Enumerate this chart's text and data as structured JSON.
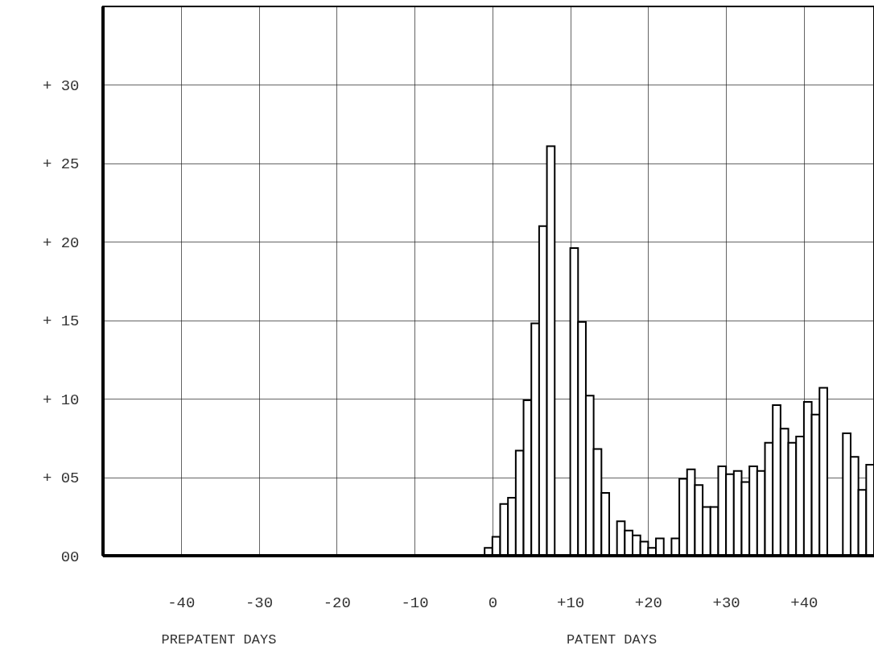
{
  "chart_data": {
    "type": "histogram",
    "bins": [
      -1,
      0,
      1,
      2,
      3,
      4,
      5,
      6,
      7,
      8,
      9,
      10,
      11,
      12,
      13,
      14,
      15,
      16,
      17,
      18,
      19,
      20,
      21,
      22,
      23,
      24,
      25,
      26,
      27,
      28,
      29,
      30,
      31,
      32,
      33,
      34,
      35,
      36,
      37,
      38,
      39,
      40,
      41,
      42,
      43,
      44,
      45,
      46,
      47,
      48,
      49
    ],
    "values": [
      0.5,
      1.2,
      3.3,
      3.7,
      6.7,
      9.9,
      14.8,
      21.0,
      26.1,
      null,
      null,
      19.6,
      14.9,
      10.2,
      6.8,
      4.0,
      0,
      2.2,
      1.6,
      1.3,
      0.9,
      0.5,
      1.1,
      0,
      1.1,
      4.9,
      5.5,
      4.5,
      3.1,
      3.1,
      5.7,
      5.2,
      5.4,
      4.7,
      5.7,
      5.4,
      7.2,
      9.6,
      8.1,
      7.2,
      7.6,
      9.8,
      9.0,
      10.7,
      0,
      0,
      7.8,
      6.3,
      4.2,
      5.8
    ],
    "color": "#000000",
    "xlim": [
      -50,
      49
    ],
    "ylim": [
      0,
      35
    ],
    "xticks": [
      -40,
      -30,
      -20,
      -10,
      0,
      {
        "value": 10,
        "label": "+10"
      },
      {
        "value": 20,
        "label": "+20"
      },
      {
        "value": 30,
        "label": "+30"
      },
      {
        "value": 40,
        "label": "+40"
      }
    ],
    "yticks": [
      {
        "value": 0,
        "label": "00"
      },
      {
        "value": 5,
        "label": "+ 05"
      },
      {
        "value": 10,
        "label": "+ 10"
      },
      {
        "value": 15,
        "label": "+ 15"
      },
      {
        "value": 20,
        "label": "+ 20"
      },
      {
        "value": 25,
        "label": "+ 25"
      },
      {
        "value": 30,
        "label": "+ 30"
      }
    ],
    "grid": true,
    "annotations": [
      "PREPATENT DAYS",
      "PATENT DAYS"
    ]
  }
}
